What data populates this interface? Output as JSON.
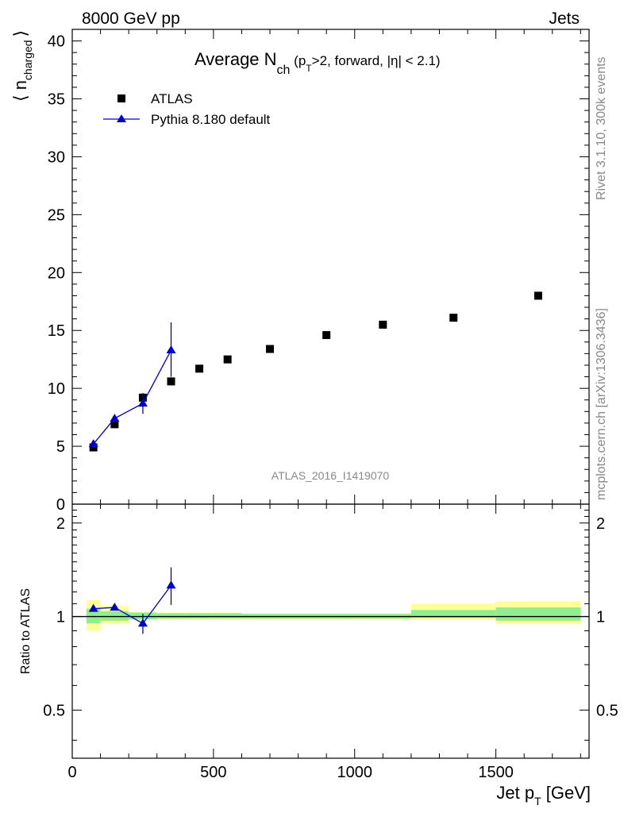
{
  "header": {
    "left": "8000 GeV pp",
    "right": "Jets"
  },
  "title": {
    "main": "Average N",
    "sub": "ch",
    "rest_a": " (p",
    "rest_sub": "T",
    "rest_b": ">2, forward, |η| < 2.1)"
  },
  "side_labels": {
    "rivet": "Rivet 3.1.10,  300k events",
    "mcplots": "mcplots.cern.ch [arXiv:1306.3436]"
  },
  "watermark": "ATLAS_2016_I1419070",
  "ylabel_top": {
    "main": "⟨ n",
    "sub": "charged",
    "close": "⟩"
  },
  "ylabel_bottom": "Ratio to ATLAS",
  "xlabel": {
    "main": "Jet p",
    "sub": "T",
    "rest": " [GeV]"
  },
  "legend": [
    {
      "label": "ATLAS",
      "marker": "square",
      "color": "#000000"
    },
    {
      "label": "Pythia 8.180 default",
      "marker": "triangle",
      "color": "#0000cc"
    }
  ],
  "colors": {
    "data": "#000000",
    "mc": "#0000cc",
    "band_inner": "#90ee90",
    "band_outer": "#ffff99"
  },
  "chart_data": [
    {
      "type": "scatter",
      "panel": "main",
      "xlim": [
        0,
        1830
      ],
      "ylim": [
        0,
        41
      ],
      "y_ticks": [
        0,
        5,
        10,
        15,
        20,
        25,
        30,
        35,
        40
      ],
      "x_ticks": [
        0,
        500,
        1000,
        1500
      ],
      "series": [
        {
          "name": "ATLAS",
          "x": [
            75,
            150,
            250,
            350,
            450,
            550,
            700,
            900,
            1100,
            1350,
            1650
          ],
          "values": [
            4.9,
            6.9,
            9.2,
            10.6,
            11.7,
            12.5,
            13.4,
            14.6,
            15.5,
            16.1,
            18.0
          ]
        },
        {
          "name": "Pythia 8.180 default",
          "x": [
            75,
            150,
            250,
            350
          ],
          "values": [
            5.2,
            7.4,
            8.7,
            13.3
          ],
          "err_lo": [
            0.2,
            0.2,
            0.9,
            2.3
          ],
          "err_hi": [
            0.2,
            0.2,
            0.9,
            2.4
          ]
        }
      ]
    },
    {
      "type": "scatter",
      "panel": "ratio",
      "xlim": [
        0,
        1830
      ],
      "ylim": [
        0.35,
        2.3
      ],
      "log_y": true,
      "y_ticks": [
        0.5,
        1,
        2
      ],
      "bins": [
        [
          50,
          100
        ],
        [
          100,
          200
        ],
        [
          200,
          300
        ],
        [
          300,
          400
        ],
        [
          400,
          500
        ],
        [
          500,
          600
        ],
        [
          600,
          800
        ],
        [
          800,
          1000
        ],
        [
          1000,
          1200
        ],
        [
          1200,
          1500
        ],
        [
          1500,
          1800
        ]
      ],
      "band_inner": [
        [
          0.95,
          1.06
        ],
        [
          0.97,
          1.04
        ],
        [
          0.98,
          1.03
        ],
        [
          0.985,
          1.025
        ],
        [
          0.985,
          1.025
        ],
        [
          0.985,
          1.025
        ],
        [
          0.985,
          1.02
        ],
        [
          0.985,
          1.02
        ],
        [
          0.985,
          1.02
        ],
        [
          0.99,
          1.05
        ],
        [
          0.97,
          1.07
        ]
      ],
      "band_outer": [
        [
          0.9,
          1.13
        ],
        [
          0.945,
          1.08
        ],
        [
          0.975,
          1.035
        ],
        [
          0.98,
          1.03
        ],
        [
          0.98,
          1.03
        ],
        [
          0.98,
          1.03
        ],
        [
          0.98,
          1.025
        ],
        [
          0.98,
          1.025
        ],
        [
          0.98,
          1.025
        ],
        [
          0.975,
          1.1
        ],
        [
          0.945,
          1.12
        ]
      ],
      "series": [
        {
          "name": "Pythia 8.180 default",
          "x": [
            75,
            150,
            250,
            350
          ],
          "values": [
            1.06,
            1.07,
            0.95,
            1.26
          ],
          "err_lo": [
            0.02,
            0.02,
            0.07,
            0.17
          ],
          "err_hi": [
            0.02,
            0.02,
            0.07,
            0.18
          ]
        }
      ]
    }
  ]
}
